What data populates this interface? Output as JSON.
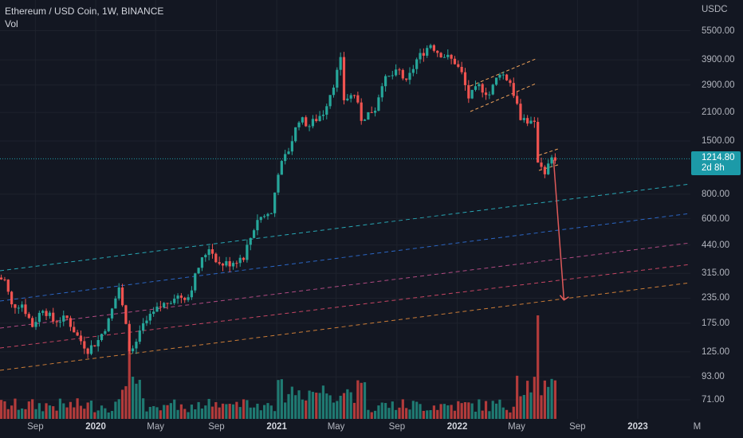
{
  "header": {
    "symbol_line": "Ethereum / USD Coin, 1W, BINANCE",
    "volume_label": "Vol"
  },
  "price_axis": {
    "currency": "USDC",
    "labels": [
      "5500.00",
      "3900.00",
      "2900.00",
      "2100.00",
      "1500.00",
      "800.00",
      "600.00",
      "440.00",
      "315.00",
      "235.00",
      "175.00",
      "125.00",
      "93.00",
      "71.00"
    ],
    "last_price": "1214.80",
    "countdown": "2d 8h"
  },
  "time_axis": {
    "labels": [
      {
        "text": "Sep",
        "bold": false
      },
      {
        "text": "2020",
        "bold": true
      },
      {
        "text": "May",
        "bold": false
      },
      {
        "text": "Sep",
        "bold": false
      },
      {
        "text": "2021",
        "bold": true
      },
      {
        "text": "May",
        "bold": false
      },
      {
        "text": "Sep",
        "bold": false
      },
      {
        "text": "2022",
        "bold": true
      },
      {
        "text": "May",
        "bold": false
      },
      {
        "text": "Sep",
        "bold": false
      },
      {
        "text": "2023",
        "bold": true
      },
      {
        "text": "M",
        "bold": false
      }
    ]
  },
  "colors": {
    "background": "#131722",
    "up": "#26a69a",
    "down": "#ef5350",
    "volume_up": "#1f7a72",
    "volume_down": "#b23b3b",
    "last_price": "#1c9aa8",
    "projection_arrow": "#e05a5a",
    "channel": "#f0a35a",
    "log_lines": [
      "#2bb6c4",
      "#2e6fd6",
      "#c0508c",
      "#d84a6a",
      "#e0883a"
    ]
  },
  "chart_data": {
    "type": "candlestick",
    "title": "Ethereum / USD Coin, 1W, BINANCE",
    "scale": "log",
    "ylim": [
      60,
      6500
    ],
    "y_ticks": [
      5500,
      3900,
      2900,
      2100,
      1500,
      800,
      600,
      440,
      315,
      235,
      175,
      125,
      93,
      71
    ],
    "x_ticks": [
      "Sep",
      "2020",
      "May",
      "Sep",
      "2021",
      "May",
      "Sep",
      "2022",
      "May",
      "Sep",
      "2023",
      "M"
    ],
    "last_price": 1214.8,
    "period": "1W",
    "price_path": [
      [
        "2019-06-17",
        300
      ],
      [
        "2019-07-01",
        290
      ],
      [
        "2019-07-15",
        215
      ],
      [
        "2019-08-05",
        220
      ],
      [
        "2019-08-26",
        170
      ],
      [
        "2019-09-16",
        210
      ],
      [
        "2019-10-07",
        180
      ],
      [
        "2019-11-04",
        185
      ],
      [
        "2019-11-25",
        150
      ],
      [
        "2019-12-16",
        128
      ],
      [
        "2020-01-06",
        143
      ],
      [
        "2020-01-27",
        180
      ],
      [
        "2020-02-17",
        268
      ],
      [
        "2020-03-09",
        132
      ],
      [
        "2020-03-16",
        125
      ],
      [
        "2020-04-06",
        170
      ],
      [
        "2020-05-04",
        205
      ],
      [
        "2020-06-08",
        240
      ],
      [
        "2020-07-06",
        240
      ],
      [
        "2020-07-27",
        340
      ],
      [
        "2020-08-17",
        430
      ],
      [
        "2020-09-07",
        350
      ],
      [
        "2020-09-28",
        355
      ],
      [
        "2020-10-26",
        385
      ],
      [
        "2020-11-23",
        600
      ],
      [
        "2020-12-21",
        640
      ],
      [
        "2021-01-04",
        1050
      ],
      [
        "2021-01-25",
        1350
      ],
      [
        "2021-02-15",
        1950
      ],
      [
        "2021-03-08",
        1800
      ],
      [
        "2021-04-05",
        2100
      ],
      [
        "2021-04-26",
        2950
      ],
      [
        "2021-05-10",
        3850
      ],
      [
        "2021-05-17",
        2450
      ],
      [
        "2021-06-07",
        2600
      ],
      [
        "2021-06-21",
        1950
      ],
      [
        "2021-07-19",
        2200
      ],
      [
        "2021-08-02",
        3000
      ],
      [
        "2021-08-23",
        3250
      ],
      [
        "2021-09-06",
        3400
      ],
      [
        "2021-09-20",
        2950
      ],
      [
        "2021-10-11",
        3900
      ],
      [
        "2021-11-01",
        4500
      ],
      [
        "2021-11-08",
        4700
      ],
      [
        "2021-11-22",
        4300
      ],
      [
        "2021-12-13",
        4000
      ],
      [
        "2021-12-27",
        3800
      ],
      [
        "2022-01-10",
        3300
      ],
      [
        "2022-01-24",
        2500
      ],
      [
        "2022-02-14",
        2850
      ],
      [
        "2022-03-07",
        2600
      ],
      [
        "2022-03-28",
        3400
      ],
      [
        "2022-04-18",
        3000
      ],
      [
        "2022-05-09",
        2000
      ],
      [
        "2022-05-23",
        1900
      ],
      [
        "2022-06-06",
        1800
      ],
      [
        "2022-06-13",
        1200
      ],
      [
        "2022-06-27",
        1050
      ],
      [
        "2022-07-11",
        1200
      ],
      [
        "2022-07-18",
        1214.8
      ]
    ],
    "projection_arrow": {
      "from": [
        "2022-07-18",
        1200
      ],
      "to": [
        "2022-08-08",
        230
      ]
    },
    "volume_highlights": [
      [
        "2020-03-09",
        0.75
      ],
      [
        "2022-06-13",
        1.0
      ]
    ]
  }
}
